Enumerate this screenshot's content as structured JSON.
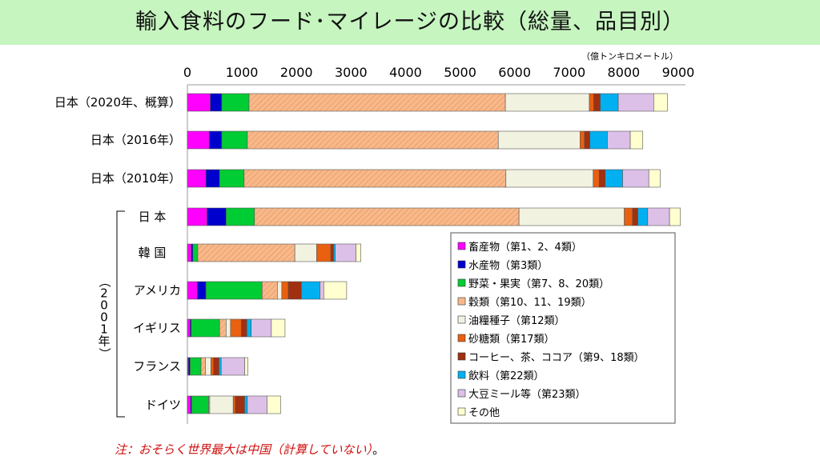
{
  "title": "輸入食料のフード･マイレージの比較（総量、品目別）",
  "note": "注：おそらく世界最大は中国（計算していない）",
  "note_end": "。",
  "chart_data": {
    "type": "bar",
    "orientation": "horizontal",
    "stacked": true,
    "unit_label": "（億トンキロメートル）",
    "xlim": [
      0,
      9000
    ],
    "x_ticks": [
      "0",
      "1000",
      "2000",
      "3000",
      "4000",
      "5000",
      "6000",
      "7000",
      "8000",
      "9000"
    ],
    "grid": false,
    "legend_position": "bottom-right",
    "group_label": "（2001年）",
    "categories": [
      "日本（2020年、概算）",
      "日本（2016年）",
      "日本（2010年）",
      "日 本",
      "韓 国",
      "アメリカ",
      "イギリス",
      "フランス",
      "ドイツ"
    ],
    "series": [
      {
        "name": "畜産物（第1、2、4類）",
        "color": "#ff00ff",
        "values": [
          420,
          400,
          340,
          360,
          70,
          180,
          50,
          20,
          60
        ]
      },
      {
        "name": "水産物（第3類）",
        "color": "#0000cc",
        "values": [
          210,
          230,
          250,
          350,
          30,
          160,
          20,
          30,
          20
        ]
      },
      {
        "name": "野菜・果実（第7、8、20類）",
        "color": "#00cc33",
        "values": [
          500,
          470,
          450,
          520,
          90,
          1030,
          520,
          200,
          310
        ]
      },
      {
        "name": "穀類（第10、11、19類）",
        "color": "#f8b88a",
        "values": [
          4700,
          4600,
          4800,
          4850,
          1780,
          280,
          120,
          80,
          20
        ]
      },
      {
        "name": "油糧種子（第12類）",
        "color": "#f2f2e0",
        "values": [
          1540,
          1500,
          1600,
          1930,
          400,
          80,
          80,
          100,
          430
        ]
      },
      {
        "name": "砂糖類（第17類）",
        "color": "#e86010",
        "values": [
          80,
          80,
          110,
          150,
          260,
          120,
          200,
          50,
          40
        ]
      },
      {
        "name": "コーヒー、茶、ココア（第9、18類）",
        "color": "#a03010",
        "values": [
          120,
          100,
          110,
          100,
          50,
          240,
          100,
          100,
          170
        ]
      },
      {
        "name": "飲料（第22類）",
        "color": "#00b0f0",
        "values": [
          330,
          320,
          320,
          180,
          30,
          340,
          80,
          40,
          50
        ]
      },
      {
        "name": "大豆ミール等（第23類）",
        "color": "#dcc0e8",
        "values": [
          650,
          420,
          480,
          400,
          380,
          70,
          370,
          430,
          360
        ]
      },
      {
        "name": "その他",
        "color": "#ffffd0",
        "values": [
          250,
          230,
          210,
          200,
          90,
          420,
          250,
          60,
          250
        ]
      }
    ]
  }
}
